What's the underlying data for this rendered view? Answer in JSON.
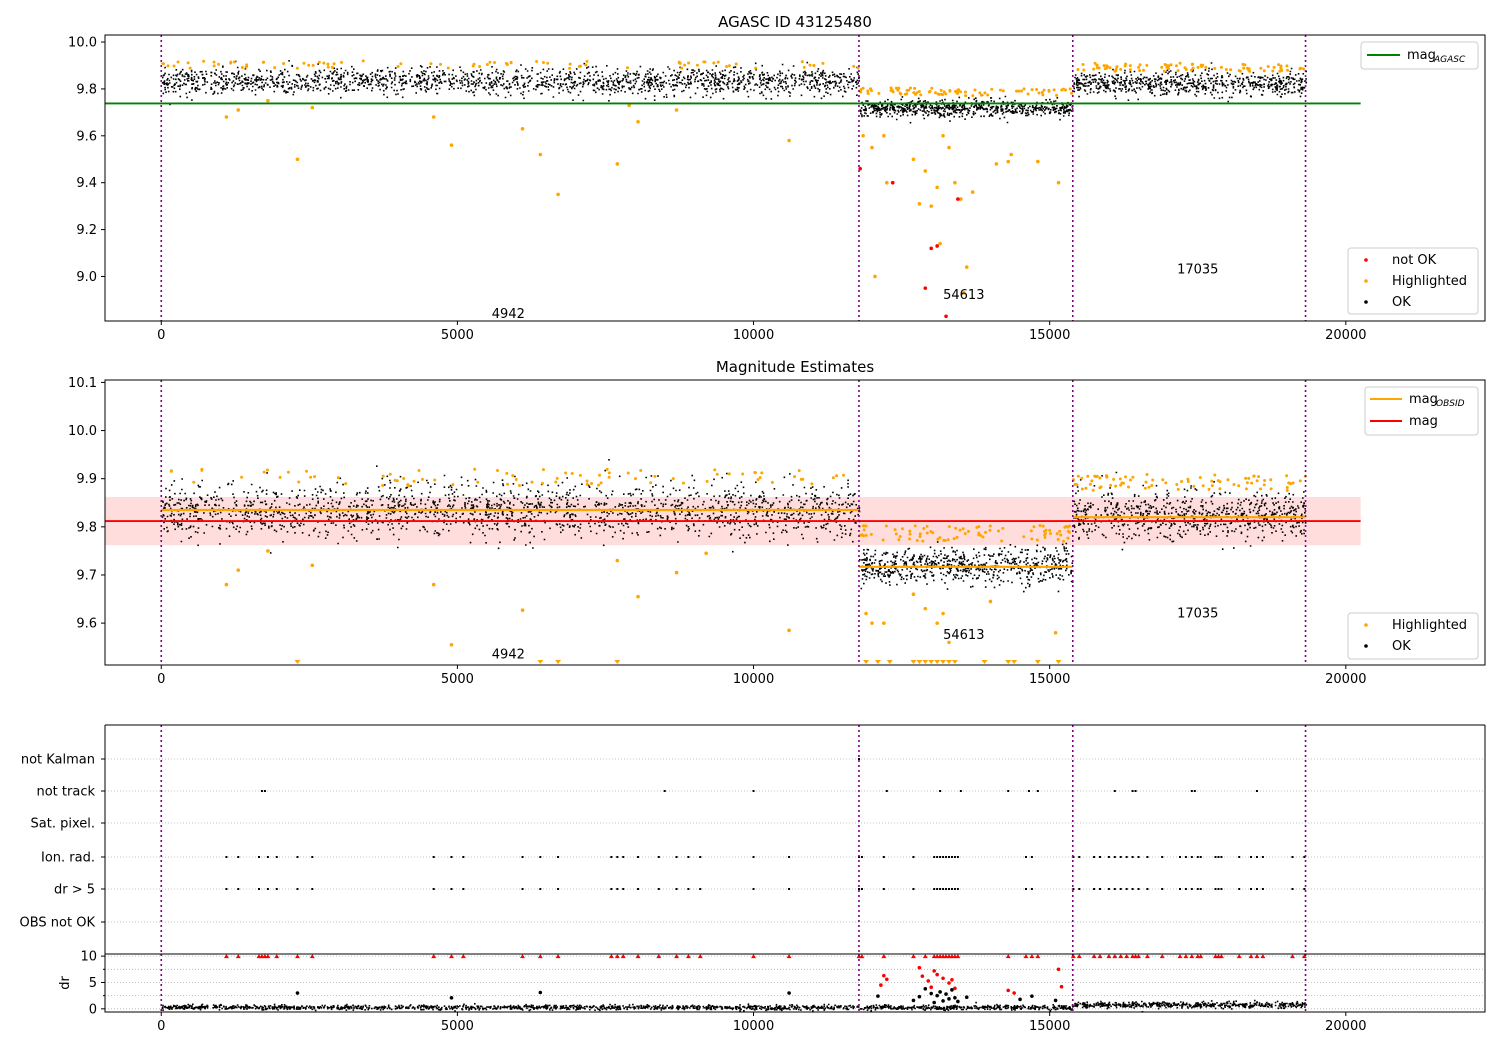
{
  "chart_data": [
    {
      "type": "scatter",
      "title": "AGASC ID 43125480",
      "xlim": [
        -950,
        22350
      ],
      "ylim": [
        8.81,
        10.03
      ],
      "x_ticks": [
        0,
        5000,
        10000,
        15000,
        20000
      ],
      "y_ticks": [
        9.0,
        9.2,
        9.4,
        9.6,
        9.8,
        10.0
      ],
      "grid": false,
      "vlines": [
        0,
        11780,
        15390,
        19320
      ],
      "vline_color": "#800080",
      "obsid_labels": [
        {
          "text": "4942",
          "x": 5860,
          "y": 8.84
        },
        {
          "text": "54613",
          "x": 13550,
          "y": 8.92
        },
        {
          "text": "17035",
          "x": 17500,
          "y": 9.03
        }
      ],
      "hlines": [
        {
          "name": "mag_AGASC_label",
          "y": 9.738,
          "x0": -950,
          "x1": 20250,
          "color": "#008000"
        }
      ],
      "segments": [
        {
          "x0": 0,
          "x1": 11780,
          "center": 9.835,
          "spread": 0.028,
          "n": 1800
        },
        {
          "x0": 11780,
          "x1": 15390,
          "center": 9.72,
          "spread": 0.018,
          "n": 700
        },
        {
          "x0": 15390,
          "x1": 19320,
          "center": 9.825,
          "spread": 0.025,
          "n": 700
        }
      ],
      "highlighted_points": [
        [
          1100,
          9.68
        ],
        [
          1300,
          9.71
        ],
        [
          1800,
          9.75
        ],
        [
          2300,
          9.5
        ],
        [
          2550,
          9.72
        ],
        [
          4600,
          9.68
        ],
        [
          4900,
          9.56
        ],
        [
          6100,
          9.63
        ],
        [
          6400,
          9.52
        ],
        [
          6700,
          9.35
        ],
        [
          7700,
          9.48
        ],
        [
          7900,
          9.73
        ],
        [
          8050,
          9.66
        ],
        [
          8700,
          9.71
        ],
        [
          10600,
          9.58
        ],
        [
          11850,
          9.6
        ],
        [
          12000,
          9.55
        ],
        [
          12050,
          9.0
        ],
        [
          12200,
          9.6
        ],
        [
          12250,
          9.4
        ],
        [
          12700,
          9.5
        ],
        [
          12800,
          9.31
        ],
        [
          12900,
          9.45
        ],
        [
          13000,
          9.3
        ],
        [
          13100,
          9.38
        ],
        [
          13150,
          9.14
        ],
        [
          13200,
          9.6
        ],
        [
          13300,
          9.55
        ],
        [
          13400,
          9.4
        ],
        [
          13500,
          9.33
        ],
        [
          13550,
          8.93
        ],
        [
          13600,
          9.04
        ],
        [
          13700,
          9.36
        ],
        [
          14100,
          9.48
        ],
        [
          14300,
          9.49
        ],
        [
          14350,
          9.52
        ],
        [
          14800,
          9.49
        ],
        [
          15150,
          9.4
        ]
      ],
      "notok_points": [
        [
          11800,
          9.46
        ],
        [
          12350,
          9.4
        ],
        [
          12900,
          8.95
        ],
        [
          13000,
          9.12
        ],
        [
          13100,
          9.13
        ],
        [
          13250,
          8.83
        ],
        [
          13450,
          9.33
        ]
      ],
      "legend": {
        "line_entries": [
          {
            "label": "mag",
            "sub": "AGASC",
            "color": "#008000"
          }
        ],
        "marker_entries": [
          {
            "label": "not OK",
            "color": "#ff0000"
          },
          {
            "label": "Highlighted",
            "color": "#ffa500"
          },
          {
            "label": "OK",
            "color": "#000000"
          }
        ]
      }
    },
    {
      "type": "scatter",
      "title": "Magnitude Estimates",
      "xlim": [
        -950,
        22350
      ],
      "ylim": [
        9.513,
        10.105
      ],
      "x_ticks": [
        0,
        5000,
        10000,
        15000,
        20000
      ],
      "y_ticks": [
        9.6,
        9.7,
        9.8,
        9.9,
        10.0,
        10.1
      ],
      "grid": false,
      "vlines": [
        0,
        11780,
        15390,
        19320
      ],
      "obsid_labels": [
        {
          "text": "4942",
          "x": 5860,
          "y": 9.535
        },
        {
          "text": "54613",
          "x": 13550,
          "y": 9.575
        },
        {
          "text": "17035",
          "x": 17500,
          "y": 9.62
        }
      ],
      "band": {
        "y0": 9.762,
        "y1": 9.862,
        "x0": -950,
        "x1": 20250,
        "color": "#ffdddd"
      },
      "hlines": [
        {
          "y": 9.812,
          "x0": -950,
          "x1": 20250,
          "color": "#ff0000"
        }
      ],
      "obsid_means": [
        {
          "x0": 0,
          "x1": 11780,
          "y": 9.835
        },
        {
          "x0": 11780,
          "x1": 15390,
          "y": 9.717
        },
        {
          "x0": 15390,
          "x1": 19320,
          "y": 9.82
        }
      ],
      "segments": [
        {
          "x0": 0,
          "x1": 11780,
          "center": 9.835,
          "spread": 0.028,
          "n": 1800
        },
        {
          "x0": 11780,
          "x1": 15390,
          "center": 9.72,
          "spread": 0.018,
          "n": 700
        },
        {
          "x0": 15390,
          "x1": 19320,
          "center": 9.825,
          "spread": 0.025,
          "n": 700
        }
      ],
      "highlighted_points": [
        [
          1100,
          9.68
        ],
        [
          1300,
          9.71
        ],
        [
          1800,
          9.75
        ],
        [
          2550,
          9.72
        ],
        [
          4600,
          9.68
        ],
        [
          4900,
          9.555
        ],
        [
          6100,
          9.627
        ],
        [
          7700,
          9.73
        ],
        [
          8050,
          9.655
        ],
        [
          8700,
          9.705
        ],
        [
          9200,
          9.745
        ],
        [
          10600,
          9.585
        ],
        [
          11900,
          9.62
        ],
        [
          12000,
          9.6
        ],
        [
          12200,
          9.6
        ],
        [
          12700,
          9.66
        ],
        [
          12900,
          9.63
        ],
        [
          13100,
          9.6
        ],
        [
          13200,
          9.62
        ],
        [
          13300,
          9.56
        ],
        [
          14000,
          9.645
        ],
        [
          15100,
          9.58
        ]
      ],
      "clipped_highlighted_x": [
        2300,
        6400,
        6700,
        7700,
        11900,
        12100,
        12300,
        12700,
        12800,
        12900,
        13000,
        13100,
        13200,
        13300,
        13400,
        13900,
        14300,
        14400,
        14800,
        15150
      ],
      "legend": {
        "line_entries": [
          {
            "label": "mag",
            "sub": "OBSID",
            "color": "#ffa500"
          },
          {
            "label": "mag",
            "sub": "",
            "color": "#ff0000"
          }
        ],
        "marker_entries": [
          {
            "label": "Highlighted",
            "color": "#ffa500"
          },
          {
            "label": "OK",
            "color": "#000000"
          }
        ]
      }
    },
    {
      "type": "scatter",
      "xlim": [
        -950,
        22350
      ],
      "categories": [
        "not Kalman",
        "not track",
        "Sat. pixel.",
        "Ion. rad.",
        "dr > 5",
        "OBS not OK"
      ],
      "vlines": [
        0,
        11780,
        15390,
        19320
      ],
      "flag_events": {
        "not Kalman": [
          11780
        ],
        "not track": [
          1700,
          1750,
          8500,
          10000,
          12250,
          13150,
          13500,
          14300,
          14650,
          14800,
          16100,
          16400,
          16450,
          17400,
          17450,
          18500
        ],
        "Sat. pixel.": [],
        "Ion. rad.": [
          1100,
          1300,
          1650,
          1800,
          1950,
          2300,
          2550,
          4600,
          4900,
          5100,
          6100,
          6400,
          6700,
          7600,
          7700,
          7800,
          8050,
          8400,
          8700,
          8900,
          9100,
          10000,
          10600,
          11780,
          11830,
          12200,
          12700,
          13050,
          13100,
          13150,
          13200,
          13250,
          13300,
          13350,
          13400,
          13450,
          14600,
          14700,
          15400,
          15500,
          15750,
          15850,
          16000,
          16100,
          16200,
          16300,
          16400,
          16500,
          16650,
          16900,
          17200,
          17300,
          17400,
          17500,
          17550,
          17800,
          17850,
          17900,
          18200,
          18400,
          18500,
          18600,
          19100,
          19300
        ],
        "dr > 5": [
          1100,
          1300,
          1650,
          1800,
          1950,
          2300,
          2550,
          4600,
          4900,
          5100,
          6100,
          6400,
          6700,
          7600,
          7700,
          7800,
          8050,
          8400,
          8700,
          8900,
          9100,
          10000,
          10600,
          11780,
          11830,
          12200,
          12700,
          13050,
          13100,
          13150,
          13200,
          13250,
          13300,
          13350,
          13400,
          13450,
          14600,
          14700,
          15400,
          15500,
          15750,
          15850,
          16000,
          16100,
          16200,
          16300,
          16400,
          16500,
          16650,
          16900,
          17200,
          17300,
          17400,
          17500,
          17550,
          17800,
          17850,
          17900,
          18200,
          18400,
          18500,
          18600,
          19100,
          19300
        ],
        "OBS not OK": []
      }
    },
    {
      "type": "scatter",
      "ylabel": "dr",
      "xlim": [
        -950,
        22350
      ],
      "ylim": [
        -0.6,
        10.4
      ],
      "x_ticks": [
        0,
        5000,
        10000,
        15000,
        20000
      ],
      "y_ticks": [
        0,
        5,
        10
      ],
      "y_minor_ticks": [
        2.5,
        7.5
      ],
      "grid": "y",
      "vlines": [
        0,
        11780,
        15390,
        19320
      ],
      "segments": [
        {
          "x0": 0,
          "x1": 15390,
          "center": 0.4,
          "spread": 0.22,
          "n": 1600
        },
        {
          "x0": 15390,
          "x1": 19320,
          "center": 0.9,
          "spread": 0.28,
          "n": 500
        }
      ],
      "clipped_red_x": [
        1100,
        1300,
        1650,
        1700,
        1750,
        1800,
        1950,
        2300,
        2550,
        4600,
        4900,
        5100,
        6100,
        6400,
        6700,
        7600,
        7700,
        7800,
        8050,
        8400,
        8700,
        8900,
        9100,
        10000,
        10600,
        11780,
        11830,
        12200,
        12700,
        12900,
        13050,
        13100,
        13150,
        13200,
        13250,
        13300,
        13350,
        13400,
        13450,
        14300,
        14600,
        14700,
        14800,
        15400,
        15500,
        15750,
        15850,
        16000,
        16100,
        16200,
        16300,
        16400,
        16450,
        16500,
        16650,
        16900,
        17200,
        17300,
        17400,
        17500,
        17550,
        17800,
        17850,
        17900,
        18200,
        18400,
        18500,
        18600,
        19100,
        19300
      ],
      "red_points": [
        [
          12150,
          4.5
        ],
        [
          12200,
          6.3
        ],
        [
          12250,
          5.6
        ],
        [
          12800,
          7.8
        ],
        [
          12850,
          6.2
        ],
        [
          12950,
          5.3
        ],
        [
          13000,
          4.1
        ],
        [
          13050,
          7.2
        ],
        [
          13100,
          6.5
        ],
        [
          13200,
          5.8
        ],
        [
          13300,
          4.9
        ],
        [
          13350,
          5.5
        ],
        [
          13400,
          3.9
        ],
        [
          14300,
          3.5
        ],
        [
          14400,
          3.0
        ],
        [
          15150,
          7.5
        ],
        [
          15200,
          4.2
        ]
      ],
      "black_points": [
        [
          2300,
          3.0
        ],
        [
          4900,
          2.1
        ],
        [
          6400,
          3.1
        ],
        [
          10600,
          3.0
        ],
        [
          12100,
          2.4
        ],
        [
          12700,
          1.6
        ],
        [
          12800,
          2.3
        ],
        [
          12900,
          3.8
        ],
        [
          13000,
          2.9
        ],
        [
          13050,
          1.2
        ],
        [
          13100,
          2.5
        ],
        [
          13150,
          3.2
        ],
        [
          13200,
          1.5
        ],
        [
          13250,
          2.8
        ],
        [
          13300,
          1.9
        ],
        [
          13350,
          3.6
        ],
        [
          13400,
          2.1
        ],
        [
          13450,
          1.4
        ],
        [
          13600,
          2.2
        ],
        [
          14500,
          1.8
        ],
        [
          14700,
          2.4
        ],
        [
          15100,
          1.6
        ]
      ]
    }
  ]
}
